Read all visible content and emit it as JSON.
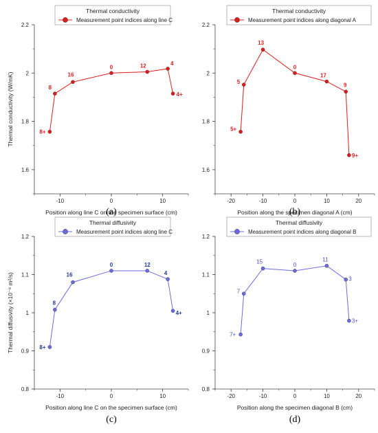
{
  "chart_data": [
    {
      "type": "line",
      "panel_letter": "(a)",
      "legend_title": "Thermal conductivity",
      "series": [
        {
          "name": "Measurement point indices along line C",
          "color": "#dd1c1c",
          "x": [
            -12,
            -11,
            -7.5,
            0,
            7,
            11,
            12
          ],
          "y": [
            1.757,
            1.915,
            1.963,
            2.0,
            2.005,
            2.018,
            1.915
          ],
          "labels": [
            "8+",
            "8",
            "16",
            "0",
            "12",
            "4",
            "4+"
          ]
        }
      ],
      "xlabel": "Position along line C on the specimen surface  (cm)",
      "ylabel": "Thermal conductivity  (W/mK)",
      "xlim": [
        -15,
        15
      ],
      "ylim": [
        1.5,
        2.2
      ],
      "xticks": [
        -10,
        0,
        10
      ],
      "yticks": [
        1.6,
        1.8,
        2,
        2.2
      ],
      "ytick_labels": [
        "1.6",
        "1.8",
        "2",
        "2.2"
      ],
      "grid": false,
      "legend_position": "top"
    },
    {
      "type": "line",
      "panel_letter": "(b)",
      "legend_title": "Thermal conductivity",
      "series": [
        {
          "name": "Measurement point indices along diagonal A",
          "color": "#dd1c1c",
          "x": [
            -17,
            -16,
            -10,
            0,
            10,
            16,
            17
          ],
          "y": [
            1.757,
            1.952,
            2.097,
            2.0,
            1.965,
            1.923,
            1.66
          ],
          "labels": [
            "5+",
            "5",
            "13",
            "0",
            "17",
            "9",
            "9+"
          ]
        }
      ],
      "xlabel": "Position along the specimen diagonal A  (cm)",
      "ylabel": "",
      "xlim": [
        -25,
        25
      ],
      "ylim": [
        1.5,
        2.2
      ],
      "xticks": [
        -20,
        -10,
        0,
        10,
        20
      ],
      "yticks": [
        1.6,
        1.8,
        2,
        2.2
      ],
      "ytick_labels": [
        "1.6",
        "1.8",
        "2",
        "2.2"
      ],
      "grid": false,
      "legend_position": "top"
    },
    {
      "type": "line",
      "panel_letter": "(c)",
      "legend_title": "Thermal diffusivity",
      "series": [
        {
          "name": "Measurement point indices along line C",
          "color": "#6a6ae0",
          "x": [
            -12,
            -11,
            -7.5,
            0,
            7,
            11,
            12
          ],
          "y": [
            0.91,
            1.008,
            1.08,
            1.11,
            1.11,
            1.088,
            1.005
          ],
          "labels": [
            "8+",
            "8",
            "16",
            "0",
            "12",
            "4",
            "4+"
          ]
        }
      ],
      "xlabel": "Position along line C on the specimen surface  (cm)",
      "ylabel": "Thermal diffusivity  (×10⁻⁶ m²/s)",
      "xlim": [
        -15,
        15
      ],
      "ylim": [
        0.8,
        1.2
      ],
      "xticks": [
        -10,
        0,
        10
      ],
      "yticks": [
        0.8,
        0.9,
        1,
        1.1,
        1.2
      ],
      "ytick_labels": [
        "0.8",
        "0.9",
        "1",
        "1.1",
        "1.2"
      ],
      "grid": false,
      "legend_position": "top"
    },
    {
      "type": "line",
      "panel_letter": "(d)",
      "legend_title": "Thermal diffusivity",
      "series": [
        {
          "name": "Measurement point indices along diagonal B",
          "color": "#6a6ae0",
          "x": [
            -17,
            -16,
            -10,
            0,
            10,
            16,
            17
          ],
          "y": [
            0.943,
            1.05,
            1.116,
            1.11,
            1.123,
            1.087,
            0.979
          ],
          "labels": [
            "7+",
            "7",
            "15",
            "0",
            "11",
            "3",
            "3+"
          ]
        }
      ],
      "xlabel": "Position along the specimen diagonal B  (cm)",
      "ylabel": "",
      "xlim": [
        -25,
        25
      ],
      "ylim": [
        0.8,
        1.2
      ],
      "xticks": [
        -20,
        -10,
        0,
        10,
        20
      ],
      "yticks": [
        0.8,
        0.9,
        1,
        1.1,
        1.2
      ],
      "ytick_labels": [
        "0.8",
        "0.9",
        "1",
        "1.1",
        "1.2"
      ],
      "grid": false,
      "legend_position": "top"
    }
  ]
}
